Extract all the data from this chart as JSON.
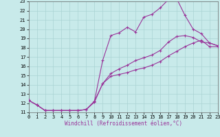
{
  "bg_color": "#c8eaea",
  "grid_color": "#aad4d4",
  "line_color": "#993399",
  "xlabel": "Windchill (Refroidissement éolien,°C)",
  "xlim": [
    0,
    23
  ],
  "ylim": [
    11,
    23
  ],
  "ytick_vals": [
    11,
    12,
    13,
    14,
    15,
    16,
    17,
    18,
    19,
    20,
    21,
    22,
    23
  ],
  "xtick_vals": [
    0,
    1,
    2,
    3,
    4,
    5,
    6,
    7,
    8,
    9,
    10,
    11,
    12,
    13,
    14,
    15,
    16,
    17,
    18,
    19,
    20,
    21,
    22,
    23
  ],
  "line1_x": [
    0,
    1,
    2,
    3,
    4,
    5,
    6,
    7,
    8,
    9,
    10,
    11,
    12,
    13,
    14,
    15,
    16,
    17,
    18,
    19,
    20,
    21,
    22,
    23
  ],
  "line1_y": [
    12.3,
    11.8,
    11.2,
    11.2,
    11.2,
    11.2,
    11.2,
    11.3,
    12.1,
    14.1,
    14.9,
    15.1,
    15.3,
    15.6,
    15.8,
    16.1,
    16.5,
    17.1,
    17.6,
    18.1,
    18.5,
    18.8,
    18.1,
    18.1
  ],
  "line2_x": [
    0,
    1,
    2,
    3,
    4,
    5,
    6,
    7,
    8,
    9,
    10,
    11,
    12,
    13,
    14,
    15,
    16,
    17,
    18,
    19,
    20,
    21,
    22,
    23
  ],
  "line2_y": [
    12.3,
    11.8,
    11.2,
    11.2,
    11.2,
    11.2,
    11.2,
    11.3,
    12.2,
    16.6,
    19.3,
    19.6,
    20.2,
    19.7,
    21.3,
    21.6,
    22.3,
    23.2,
    23.3,
    21.5,
    20.0,
    19.5,
    18.5,
    18.2
  ],
  "line3_x": [
    0,
    1,
    2,
    3,
    4,
    5,
    6,
    7,
    8,
    9,
    10,
    11,
    12,
    13,
    14,
    15,
    16,
    17,
    18,
    19,
    20,
    21,
    22,
    23
  ],
  "line3_y": [
    12.3,
    11.8,
    11.2,
    11.2,
    11.2,
    11.2,
    11.2,
    11.3,
    12.2,
    14.1,
    15.2,
    15.7,
    16.1,
    16.6,
    16.9,
    17.2,
    17.7,
    18.6,
    19.2,
    19.3,
    19.1,
    18.6,
    18.5,
    18.2
  ],
  "tick_font_size": 5,
  "xlabel_font_size": 5.5,
  "lw": 0.8,
  "ms": 3.5,
  "mew": 0.8
}
